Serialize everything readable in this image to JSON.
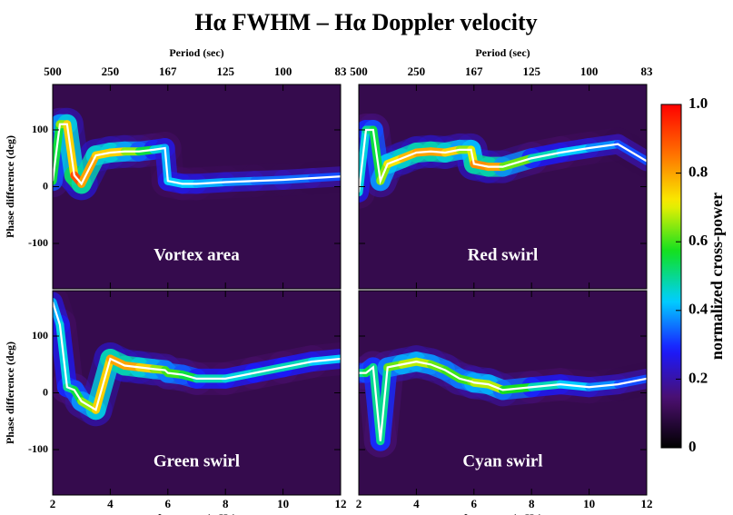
{
  "figure_title": "Hα FWHM – Hα Doppler velocity",
  "chart_data": [
    {
      "type": "line",
      "label": "Vortex area",
      "ylabel": "Phase difference (deg)",
      "x2label": "Period (sec)",
      "x": [
        2,
        2.25,
        2.5,
        2.75,
        3,
        3.5,
        4,
        4.5,
        5,
        5.5,
        5.9,
        6,
        6.5,
        7,
        8,
        9,
        10,
        11,
        12
      ],
      "series": [
        {
          "color": "#ffffff",
          "values": [
            10,
            110,
            110,
            20,
            5,
            55,
            60,
            62,
            62,
            65,
            68,
            10,
            5,
            5,
            8,
            10,
            12,
            15,
            18
          ],
          "power": [
            0.4,
            0.7,
            0.6,
            0.9,
            0.9,
            0.7,
            0.8,
            0.7,
            0.6,
            0.5,
            0.4,
            0.4,
            0.45,
            0.4,
            0.4,
            0.35,
            0.35,
            0.35,
            0.3
          ]
        }
      ],
      "xlim": [
        2,
        12
      ],
      "ylim": [
        -180,
        180
      ],
      "xticks": [
        2,
        4,
        6,
        8,
        10,
        12
      ],
      "yticks": [
        -100,
        0,
        100
      ],
      "xtick_labels": false,
      "ytick_labels": true,
      "x2ticks": [
        {
          "value": 2,
          "label": "500"
        },
        {
          "value": 4,
          "label": "250"
        },
        {
          "value": 6,
          "label": "167"
        },
        {
          "value": 8,
          "label": "125"
        },
        {
          "value": 10,
          "label": "100"
        },
        {
          "value": 12,
          "label": "83"
        }
      ]
    },
    {
      "type": "line",
      "label": "Red swirl",
      "x2label": "Period (sec)",
      "x": [
        2,
        2.25,
        2.5,
        2.75,
        3,
        3.5,
        4,
        4.5,
        5,
        5.5,
        5.9,
        6,
        6.5,
        7,
        8,
        9,
        10,
        11,
        12
      ],
      "series": [
        {
          "color": "#ffffff",
          "values": [
            -10,
            100,
            100,
            10,
            40,
            50,
            60,
            62,
            60,
            65,
            65,
            40,
            35,
            35,
            50,
            60,
            68,
            75,
            45
          ],
          "power": [
            0.4,
            0.5,
            0.5,
            0.6,
            0.7,
            0.75,
            0.8,
            0.8,
            0.8,
            0.7,
            0.6,
            0.8,
            0.85,
            0.75,
            0.5,
            0.45,
            0.4,
            0.35,
            0.3
          ]
        }
      ],
      "xlim": [
        2,
        12
      ],
      "ylim": [
        -180,
        180
      ],
      "xticks": [
        2,
        4,
        6,
        8,
        10,
        12
      ],
      "yticks": [
        -100,
        0,
        100
      ],
      "xtick_labels": false,
      "ytick_labels": false,
      "x2ticks": [
        {
          "value": 2,
          "label": "500"
        },
        {
          "value": 4,
          "label": "250"
        },
        {
          "value": 6,
          "label": "167"
        },
        {
          "value": 8,
          "label": "125"
        },
        {
          "value": 10,
          "label": "100"
        },
        {
          "value": 12,
          "label": "83"
        }
      ]
    },
    {
      "type": "line",
      "label": "Green swirl",
      "ylabel": "Phase difference (deg)",
      "xlabel": "frequency (mHz)",
      "x": [
        2,
        2.25,
        2.5,
        2.75,
        3,
        3.5,
        4,
        4.5,
        5,
        5.5,
        5.9,
        6,
        6.5,
        7,
        8,
        9,
        10,
        11,
        12
      ],
      "series": [
        {
          "color": "#ffffff",
          "values": [
            160,
            120,
            10,
            5,
            -15,
            -30,
            60,
            48,
            45,
            42,
            40,
            35,
            32,
            25,
            25,
            35,
            45,
            55,
            60
          ],
          "power": [
            0.4,
            0.4,
            0.5,
            0.5,
            0.6,
            0.7,
            0.8,
            0.8,
            0.8,
            0.7,
            0.6,
            0.6,
            0.6,
            0.5,
            0.45,
            0.45,
            0.5,
            0.45,
            0.4
          ]
        }
      ],
      "xlim": [
        2,
        12
      ],
      "ylim": [
        -180,
        180
      ],
      "xticks": [
        2,
        4,
        6,
        8,
        10,
        12
      ],
      "yticks": [
        -100,
        0,
        100
      ],
      "xtick_labels": true,
      "ytick_labels": true
    },
    {
      "type": "line",
      "label": "Cyan swirl",
      "xlabel": "frequency (mHz)",
      "x": [
        2,
        2.25,
        2.5,
        2.75,
        3,
        3.5,
        4,
        4.5,
        5,
        5.5,
        5.9,
        6,
        6.5,
        7,
        8,
        9,
        10,
        11,
        12
      ],
      "series": [
        {
          "color": "#ffffff",
          "values": [
            35,
            35,
            45,
            -85,
            45,
            50,
            55,
            50,
            40,
            25,
            20,
            18,
            15,
            5,
            10,
            15,
            10,
            15,
            25
          ],
          "power": [
            0.5,
            0.5,
            0.6,
            0.4,
            0.6,
            0.65,
            0.7,
            0.65,
            0.6,
            0.6,
            0.6,
            0.65,
            0.7,
            0.65,
            0.5,
            0.45,
            0.4,
            0.35,
            0.3
          ]
        }
      ],
      "xlim": [
        2,
        12
      ],
      "ylim": [
        -180,
        180
      ],
      "xticks": [
        2,
        4,
        6,
        8,
        10,
        12
      ],
      "yticks": [
        -100,
        0,
        100
      ],
      "xtick_labels": true,
      "ytick_labels": false
    }
  ],
  "colorbar": {
    "label": "normalized cross-power",
    "lim": [
      0,
      1
    ],
    "ticks": [
      0,
      0.2,
      0.4,
      0.6,
      0.8,
      {
        "value": 1,
        "label": "1.0"
      }
    ],
    "colors": [
      "#000000",
      "#4b0f6e",
      "#1a1aff",
      "#00d0ff",
      "#10e020",
      "#f8f000",
      "#ff7000",
      "#ff0000"
    ]
  }
}
